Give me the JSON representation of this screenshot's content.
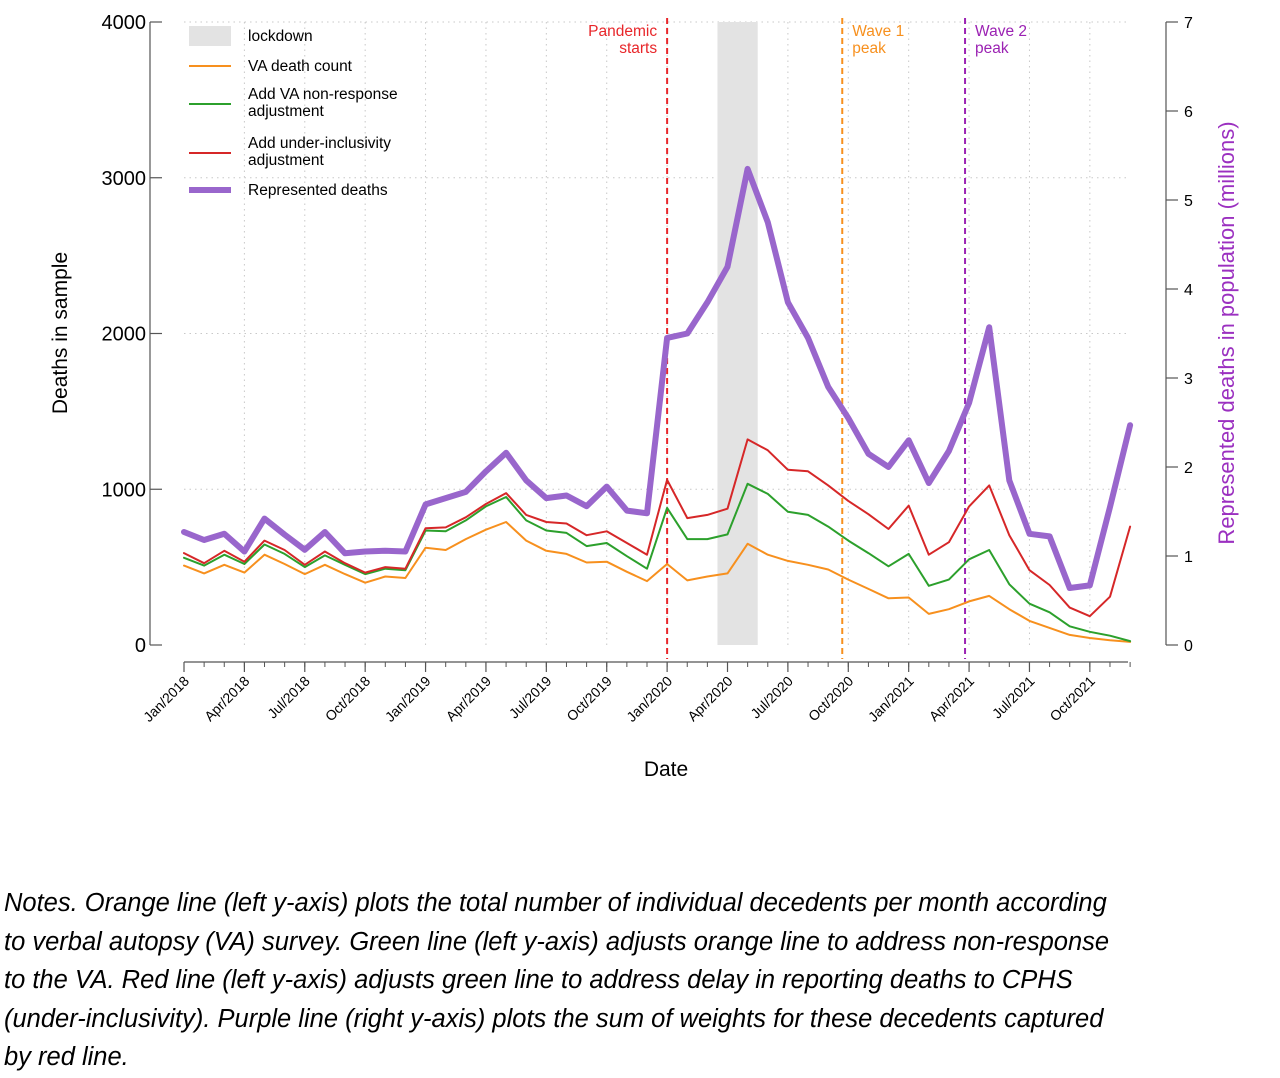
{
  "chart_data": {
    "type": "line",
    "xlabel": "Date",
    "ylabel": "Deaths in sample",
    "y2label": "Represented deaths in population (millions)",
    "ylim": [
      0,
      4000
    ],
    "y2lim": [
      0,
      7
    ],
    "yticks": [
      0,
      1000,
      2000,
      3000,
      4000
    ],
    "y2ticks": [
      0,
      1,
      2,
      3,
      4,
      5,
      6,
      7
    ],
    "grid": true,
    "legend_position": "top-left",
    "x": [
      "2018-01",
      "2018-02",
      "2018-03",
      "2018-04",
      "2018-05",
      "2018-06",
      "2018-07",
      "2018-08",
      "2018-09",
      "2018-10",
      "2018-11",
      "2018-12",
      "2019-01",
      "2019-02",
      "2019-03",
      "2019-04",
      "2019-05",
      "2019-06",
      "2019-07",
      "2019-08",
      "2019-09",
      "2019-10",
      "2019-11",
      "2019-12",
      "2020-01",
      "2020-02",
      "2020-03",
      "2020-04",
      "2020-05",
      "2020-06",
      "2020-07",
      "2020-08",
      "2020-09",
      "2020-10",
      "2020-11",
      "2020-12",
      "2021-01",
      "2021-02",
      "2021-03",
      "2021-04",
      "2021-05",
      "2021-06",
      "2021-07",
      "2021-08",
      "2021-09",
      "2021-10",
      "2021-11",
      "2021-12"
    ],
    "xtick_labels": [
      {
        "x": "2018-01",
        "label": "Jan/2018"
      },
      {
        "x": "2018-04",
        "label": "Apr/2018"
      },
      {
        "x": "2018-07",
        "label": "Jul/2018"
      },
      {
        "x": "2018-10",
        "label": "Oct/2018"
      },
      {
        "x": "2019-01",
        "label": "Jan/2019"
      },
      {
        "x": "2019-04",
        "label": "Apr/2019"
      },
      {
        "x": "2019-07",
        "label": "Jul/2019"
      },
      {
        "x": "2019-10",
        "label": "Oct/2019"
      },
      {
        "x": "2020-01",
        "label": "Jan/2020"
      },
      {
        "x": "2020-04",
        "label": "Apr/2020"
      },
      {
        "x": "2020-07",
        "label": "Jul/2020"
      },
      {
        "x": "2020-10",
        "label": "Oct/2020"
      },
      {
        "x": "2021-01",
        "label": "Jan/2021"
      },
      {
        "x": "2021-04",
        "label": "Apr/2021"
      },
      {
        "x": "2021-07",
        "label": "Jul/2021"
      },
      {
        "x": "2021-10",
        "label": "Oct/2021"
      }
    ],
    "shaded_region": {
      "name": "lockdown",
      "from": "2020-03.5",
      "to": "2020-05.5",
      "color": "#e3e3e3"
    },
    "vlines": [
      {
        "x": "2020-01",
        "label_lines": [
          "Pandemic",
          "starts"
        ],
        "color": "#e8262a",
        "label_side": "left"
      },
      {
        "x": "2020-09.7",
        "label_lines": [
          "Wave 1",
          "peak"
        ],
        "color": "#f7901e",
        "label_side": "right"
      },
      {
        "x": "2021-03.8",
        "label_lines": [
          "Wave 2",
          "peak"
        ],
        "color": "#9b22b3",
        "label_side": "right"
      }
    ],
    "series": [
      {
        "name": "VA death count",
        "axis": "left",
        "color": "#f7901e",
        "width": 2,
        "values": [
          510,
          460,
          515,
          465,
          580,
          520,
          455,
          515,
          455,
          400,
          440,
          430,
          625,
          610,
          680,
          740,
          790,
          670,
          605,
          585,
          530,
          535,
          470,
          410,
          520,
          415,
          440,
          460,
          650,
          580,
          540,
          515,
          485,
          420,
          360,
          300,
          305,
          200,
          230,
          280,
          315,
          230,
          155,
          110,
          65,
          45,
          30,
          20
        ]
      },
      {
        "name": "Add VA non-response adjustment",
        "axis": "left",
        "color": "#2ca02c",
        "width": 2,
        "values": [
          560,
          510,
          580,
          520,
          645,
          585,
          500,
          575,
          515,
          455,
          490,
          480,
          735,
          730,
          800,
          890,
          950,
          800,
          735,
          720,
          635,
          655,
          570,
          490,
          880,
          680,
          680,
          710,
          1035,
          970,
          855,
          835,
          760,
          670,
          590,
          505,
          585,
          380,
          420,
          550,
          610,
          390,
          265,
          210,
          120,
          85,
          60,
          25
        ]
      },
      {
        "name": "Add under-inclusivity adjustment",
        "axis": "left",
        "color": "#d62728",
        "width": 2,
        "values": [
          590,
          525,
          605,
          535,
          670,
          610,
          515,
          600,
          525,
          465,
          500,
          490,
          750,
          755,
          820,
          905,
          975,
          835,
          790,
          780,
          705,
          730,
          655,
          580,
          1060,
          815,
          835,
          875,
          1320,
          1250,
          1125,
          1115,
          1025,
          925,
          840,
          745,
          895,
          580,
          660,
          890,
          1025,
          705,
          480,
          385,
          240,
          185,
          310,
          760
        ]
      },
      {
        "name": "Represented deaths",
        "axis": "right",
        "color": "#9966cc",
        "width": 6,
        "values": [
          1.27,
          1.18,
          1.25,
          1.05,
          1.42,
          1.24,
          1.07,
          1.27,
          1.03,
          1.05,
          1.06,
          1.05,
          1.58,
          1.65,
          1.72,
          1.95,
          2.16,
          1.85,
          1.65,
          1.68,
          1.56,
          1.78,
          1.51,
          1.48,
          3.45,
          3.5,
          3.85,
          4.25,
          5.35,
          4.75,
          3.85,
          3.45,
          2.9,
          2.55,
          2.15,
          2.0,
          2.3,
          1.82,
          2.18,
          2.72,
          3.57,
          1.85,
          1.25,
          1.22,
          0.64,
          0.67,
          1.55,
          2.47
        ]
      }
    ]
  },
  "notes": {
    "lines": [
      "Notes.  Orange line (left y-axis) plots the total number of individual decedents per month according",
      "to verbal autopsy (VA) survey.  Green line (left y-axis) adjusts orange line to address non-response",
      "to the VA.  Red line (left y-axis) adjusts green line to address delay in reporting deaths to CPHS",
      "(under-inclusivity).  Purple line (right y-axis) plots the sum of weights for these decedents captured",
      "by red line."
    ]
  }
}
